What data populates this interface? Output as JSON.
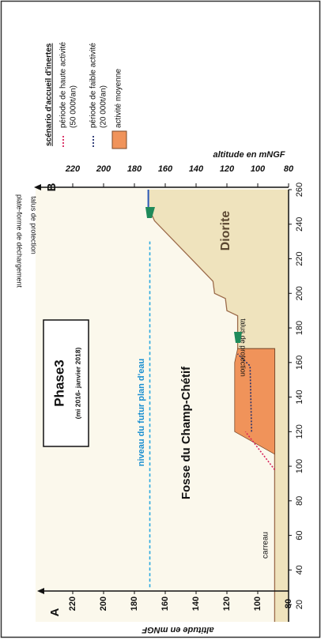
{
  "chart_data": {
    "type": "line",
    "title": "Phase3",
    "subtitle": "(mi 2016- janvier 2018)",
    "y_label": "altitude en mNGF",
    "y2_label": "altitude en mNGF",
    "xlim": [
      10,
      260
    ],
    "xticks": [
      20,
      40,
      60,
      80,
      100,
      120,
      140,
      160,
      180,
      200,
      220,
      240,
      260
    ],
    "ylim": [
      80,
      240
    ],
    "yticks": [
      80,
      100,
      120,
      140,
      160,
      180,
      200,
      220
    ],
    "y2lim": [
      80,
      240
    ],
    "y2ticks": [
      80,
      100,
      120,
      140,
      160,
      180,
      200,
      220
    ],
    "legend_title": "scénario d'accueil d'inertes",
    "series": [
      {
        "name": "période de haute activité",
        "note": "(50 000t/an)",
        "color": "#d8245c",
        "style": "dotted",
        "x": [
          98,
          120
        ],
        "values": [
          89,
          108
        ]
      },
      {
        "name": "période de faible activité",
        "note": "(20 000t/an)",
        "color": "#23306e",
        "style": "dotted",
        "x": [
          120,
          158,
          165
        ],
        "values": [
          104,
          105,
          113
        ]
      },
      {
        "name": "activité moyenne",
        "color": "#f0935a",
        "style": "area",
        "x": [
          107,
          120,
          160,
          168,
          168
        ],
        "values": [
          89,
          115,
          115,
          113,
          89
        ]
      }
    ],
    "profile": {
      "color": "#9b6b4a",
      "fill": "#efe3bd",
      "x": [
        10,
        168,
        168,
        178,
        187,
        190,
        197,
        200,
        207,
        242,
        250,
        260
      ],
      "values": [
        89,
        89,
        113,
        113,
        113,
        120,
        121,
        128,
        129,
        167,
        171,
        171
      ]
    },
    "water_level": {
      "label": "niveau du futur plan d'eau",
      "color": "#29a9e0",
      "x": [
        30,
        230
      ],
      "values": [
        170,
        170
      ]
    },
    "platform": {
      "label": "plate-forme de déchargement",
      "color": "#2a58b8",
      "x": [
        248,
        260
      ],
      "values": [
        171,
        171
      ]
    },
    "annotations": [
      "Diorite",
      "Fosse du Champ-Chétif",
      "carreau",
      "talus de protection",
      "talus de protection"
    ],
    "markers": [
      "A",
      "B"
    ]
  }
}
